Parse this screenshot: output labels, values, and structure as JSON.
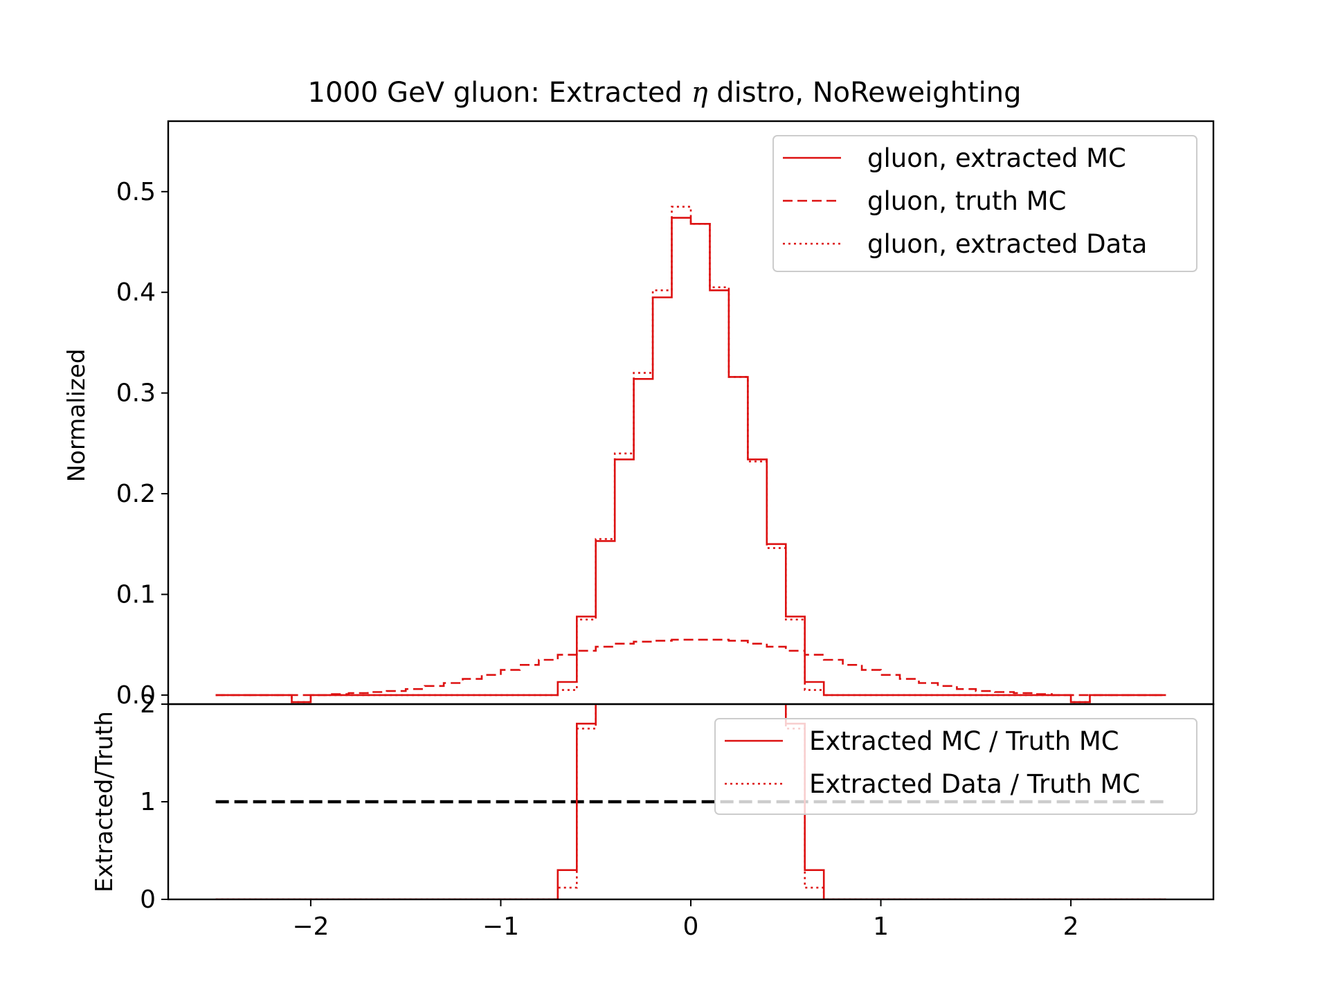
{
  "title_parts": {
    "pre": "1000 GeV gluon: Extracted ",
    "symbol": "η",
    "post": " distro, NoReweighting"
  },
  "colors": {
    "accent": "#dd1111",
    "reference": "#000000",
    "legend_border": "#cccccc"
  },
  "chart_data": [
    {
      "panel": "top",
      "type": "line",
      "drawstyle": "step",
      "xlabel": "",
      "ylabel": "Normalized",
      "xlim": [
        -2.75,
        2.75
      ],
      "ylim": [
        -0.009,
        0.57
      ],
      "yticks": [
        0.0,
        0.1,
        0.2,
        0.3,
        0.4,
        0.5
      ],
      "ytick_labels": [
        "0.0",
        "0.1",
        "0.2",
        "0.3",
        "0.4",
        "0.5"
      ],
      "legend": "top-right",
      "grid": false,
      "bin_edges": [
        -2.5,
        -2.1,
        -2.0,
        -1.9,
        -1.8,
        -1.7,
        -1.6,
        -1.5,
        -1.4,
        -1.3,
        -1.2,
        -1.1,
        -1.0,
        -0.9,
        -0.8,
        -0.7,
        -0.6,
        -0.5,
        -0.4,
        -0.3,
        -0.2,
        -0.1,
        0.0,
        0.1,
        0.2,
        0.3,
        0.4,
        0.5,
        0.6,
        0.7,
        0.8,
        0.9,
        1.0,
        1.1,
        1.2,
        1.3,
        1.4,
        1.5,
        1.6,
        1.7,
        1.8,
        1.9,
        2.0,
        2.1,
        2.5
      ],
      "series": [
        {
          "name": "gluon, extracted MC",
          "linestyle": "solid",
          "values": [
            0.0,
            -0.007,
            0.0,
            0.0,
            0.0,
            0.0,
            0.0,
            0.0,
            0.0,
            0.0,
            0.0,
            0.0,
            0.0,
            0.0,
            0.0,
            0.013,
            0.078,
            0.153,
            0.234,
            0.314,
            0.395,
            0.474,
            0.468,
            0.402,
            0.316,
            0.234,
            0.15,
            0.078,
            0.013,
            0.0,
            0.0,
            0.0,
            0.0,
            0.0,
            0.0,
            0.0,
            0.0,
            0.0,
            0.0,
            0.0,
            0.0,
            0.0,
            -0.007,
            0.0
          ]
        },
        {
          "name": "gluon, truth MC",
          "linestyle": "dashed",
          "values": [
            0.0,
            0.0,
            0.0,
            0.001,
            0.002,
            0.003,
            0.004,
            0.006,
            0.009,
            0.012,
            0.016,
            0.02,
            0.025,
            0.03,
            0.035,
            0.04,
            0.044,
            0.048,
            0.051,
            0.053,
            0.054,
            0.055,
            0.055,
            0.055,
            0.054,
            0.051,
            0.048,
            0.044,
            0.04,
            0.035,
            0.03,
            0.025,
            0.02,
            0.016,
            0.012,
            0.009,
            0.006,
            0.004,
            0.003,
            0.002,
            0.001,
            0.0,
            0.0,
            0.0
          ]
        },
        {
          "name": "gluon, extracted Data",
          "linestyle": "dotted",
          "values": [
            0.0,
            -0.007,
            0.0,
            0.0,
            0.0,
            0.0,
            0.0,
            0.0,
            0.0,
            0.0,
            0.0,
            0.0,
            0.0,
            0.0,
            0.0,
            0.005,
            0.075,
            0.155,
            0.24,
            0.32,
            0.402,
            0.485,
            0.468,
            0.405,
            0.316,
            0.232,
            0.146,
            0.075,
            0.005,
            0.0,
            0.0,
            0.0,
            0.0,
            0.0,
            0.0,
            0.0,
            0.0,
            0.0,
            0.0,
            0.0,
            0.0,
            0.0,
            -0.007,
            0.0
          ]
        }
      ]
    },
    {
      "panel": "bottom",
      "type": "line",
      "drawstyle": "step",
      "xlabel": "",
      "ylabel": "Extracted/Truth",
      "xlim": [
        -2.75,
        2.75
      ],
      "ylim": [
        0,
        2
      ],
      "xticks": [
        -2,
        -1,
        0,
        1,
        2
      ],
      "xtick_labels": [
        "−2",
        "−1",
        "0",
        "1",
        "2"
      ],
      "yticks": [
        0,
        1,
        2
      ],
      "ytick_labels": [
        "0",
        "1",
        "2"
      ],
      "legend": "top-right",
      "grid": false,
      "reference_line": {
        "y": 1,
        "x_range": [
          -2.5,
          2.5
        ],
        "linestyle": "dashed"
      },
      "bin_edges": [
        -2.5,
        -2.1,
        -0.7,
        -0.6,
        -0.5,
        0.5,
        0.6,
        0.7,
        2.1,
        2.5
      ],
      "series": [
        {
          "name": "Extracted MC / Truth MC",
          "linestyle": "solid",
          "values": [
            0.0,
            0.0,
            0.3,
            1.8,
            2.6,
            1.8,
            0.3,
            0.0,
            0.0
          ]
        },
        {
          "name": "Extracted Data / Truth MC",
          "linestyle": "dotted",
          "values": [
            0.0,
            0.0,
            0.12,
            1.75,
            2.6,
            1.75,
            0.12,
            0.0,
            0.0
          ]
        }
      ]
    }
  ]
}
